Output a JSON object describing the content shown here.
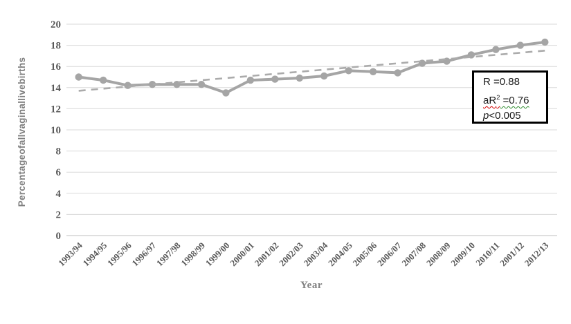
{
  "chart_data": {
    "type": "line",
    "title": "",
    "xlabel": "Year",
    "ylabel": "Percentageofallvaginallivebirths",
    "ylim": [
      0,
      20
    ],
    "ytick_step": 2,
    "grid": "horizontal",
    "legend": "none",
    "x": [
      "1993/94",
      "1994/95",
      "1995/96",
      "1996/97",
      "1997/98",
      "1998/99",
      "1999/00",
      "2000/01",
      "2001/02",
      "2002/03",
      "2003/04",
      "2004/05",
      "2005/06",
      "2006/07",
      "2007/08",
      "2008/09",
      "2009/10",
      "2010/11",
      "2001/12",
      "2012/13"
    ],
    "series": [
      {
        "name": "Percentage of all vaginal live births",
        "values": [
          15.0,
          14.7,
          14.2,
          14.3,
          14.3,
          14.3,
          13.5,
          14.7,
          14.8,
          14.9,
          15.1,
          15.6,
          15.5,
          15.4,
          16.3,
          16.5,
          17.1,
          17.6,
          18.0,
          18.3
        ]
      }
    ],
    "trendline": {
      "style": "dashed-linear",
      "start_value": 13.7,
      "end_value": 17.5
    }
  },
  "annotation_box": {
    "r_line": "R =0.88",
    "ar2_prefix": "aR",
    "ar2_sup": "2",
    "ar2_rest": " =0.76",
    "p_italic": "p",
    "p_rest": "<0.005"
  },
  "colors": {
    "series": "#a5a5a5",
    "marker": "#a5a5a5",
    "trendline": "#ababab",
    "gridline": "#d9d9d9",
    "axis_line": "#bfbfbf",
    "tick_label": "#595959",
    "axis_title": "#7f7f7f",
    "stats_text": "#1a1a1a",
    "background": "#ffffff"
  }
}
